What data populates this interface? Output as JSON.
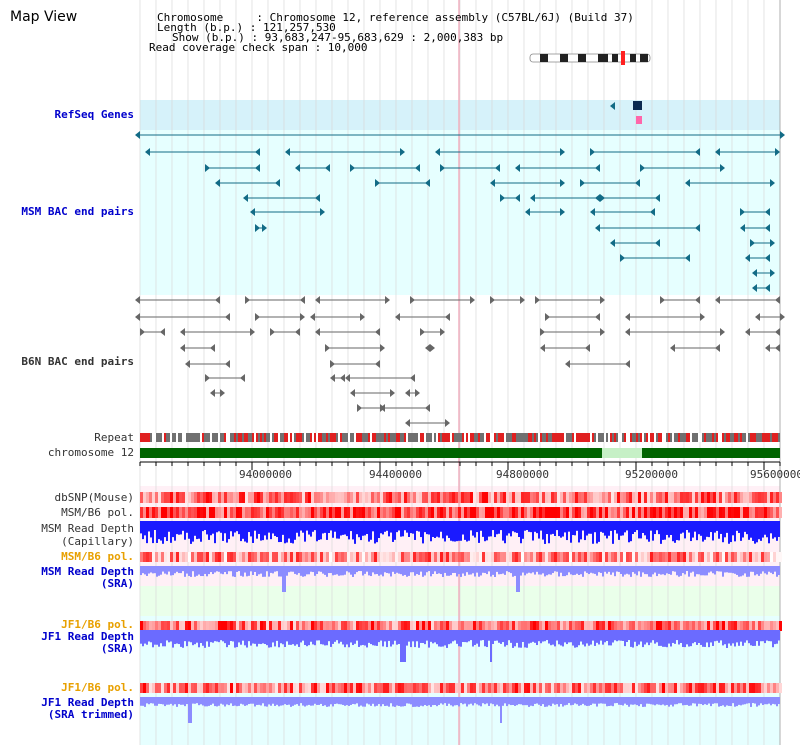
{
  "header": {
    "title": "Map View",
    "info_lines": [
      "Chromosome     : Chromosome 12, reference assembly (C57BL/6J) (Build 37)",
      "Length (b.p.) : 121,257,530",
      "Show (b.p.) : 93,683,247-95,683,629 : 2,000,383 bp",
      "Read coverage check span : 10,000"
    ]
  },
  "tracks": {
    "refseq": "RefSeq Genes",
    "msm_bac": "MSM BAC end pairs",
    "b6n_bac": "B6N BAC end pairs",
    "repeat": "Repeat",
    "chromosome": "chromosome 12",
    "dbsnp": "dbSNP(Mouse)",
    "msm_pol": "MSM/B6 pol.",
    "msm_depth_cap_1": "MSM Read Depth",
    "msm_depth_cap_2": "(Capillary)",
    "msm_pol_sra": "MSM/B6 pol.",
    "msm_depth_sra_1": "MSM Read Depth",
    "msm_depth_sra_2": "(SRA)",
    "jf1_pol_1": "JF1/B6 pol.",
    "jf1_depth_1": "JF1 Read Depth",
    "jf1_depth_1b": "(SRA)",
    "jf1_pol_2": "JF1/B6 pol.",
    "jf1_depth_2": "JF1 Read Depth",
    "jf1_depth_2b": "(SRA trimmed)"
  },
  "axis": {
    "ticks": [
      "94000000",
      "94400000",
      "94800000",
      "95200000",
      "95600000"
    ]
  },
  "colors": {
    "bg_cyan": "#e6ffff",
    "bg_refseq": "#d6f2fa",
    "track_teal": "#126b86",
    "track_gray": "#666666",
    "chrom_green": "#006400",
    "pol_red": "#ff0000",
    "depth_blue": "#0000ff",
    "label_blue": "#0000cc",
    "label_orange": "#e8a000"
  }
}
